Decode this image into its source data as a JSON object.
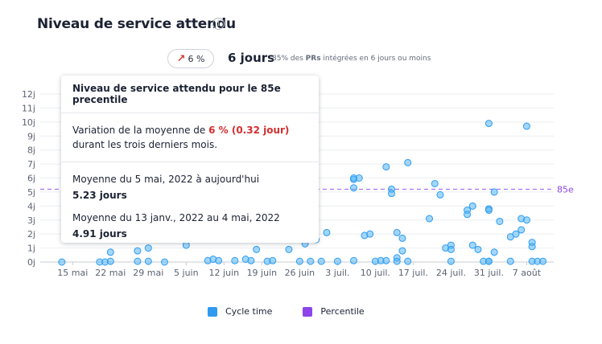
{
  "header": {
    "title": "Niveau de service attendu",
    "info_icon": "info-icon",
    "trend_arrow": "↗",
    "trend_value": "6 %",
    "days_value": "6 jours",
    "days_description_prefix": "85% des ",
    "days_description_bold": "PRs",
    "days_description_suffix": " intégrées en 6 jours ou moins"
  },
  "tooltip": {
    "title": "Niveau de service attendu pour le 85e precentile",
    "variation_prefix": "Variation de la moyenne de ",
    "variation_value": "6 % (0.32 jour)",
    "variation_suffix": " durant les trois derniers mois.",
    "period1_label": "Moyenne du 5 mai, 2022 à aujourd'hui",
    "period1_value": "5.23 jours",
    "period2_label": "Moyenne du 13 janv., 2022 au 4 mai, 2022",
    "period2_value": "4.91 jours"
  },
  "legend": {
    "cycle_time_label": "Cycle time",
    "cycle_time_color": "#2e9bf0",
    "percentile_label": "Percentile",
    "percentile_color": "#8b45e8"
  },
  "chart_data": {
    "type": "scatter",
    "percentile_label": "85e",
    "percentile_value": 5.2,
    "ylim": [
      0,
      12
    ],
    "yticks": [
      "0j",
      "1j",
      "2j",
      "3j",
      "4j",
      "5j",
      "6j",
      "7j",
      "8j",
      "9j",
      "10j",
      "11j",
      "12j"
    ],
    "xlim": [
      "2022-05-09",
      "2022-08-12"
    ],
    "xticks": [
      {
        "date": "2022-05-15",
        "label": "15 mai"
      },
      {
        "date": "2022-05-22",
        "label": "22 mai"
      },
      {
        "date": "2022-05-29",
        "label": "29 mai"
      },
      {
        "date": "2022-06-05",
        "label": "5 juin"
      },
      {
        "date": "2022-06-12",
        "label": "12 juin"
      },
      {
        "date": "2022-06-19",
        "label": "19 juin"
      },
      {
        "date": "2022-06-26",
        "label": "26 juin"
      },
      {
        "date": "2022-07-03",
        "label": "3 juil."
      },
      {
        "date": "2022-07-10",
        "label": "10 juil."
      },
      {
        "date": "2022-07-17",
        "label": "17 juil."
      },
      {
        "date": "2022-07-24",
        "label": "24 juil."
      },
      {
        "date": "2022-07-31",
        "label": "31 juil."
      },
      {
        "date": "2022-08-07",
        "label": "7 août"
      }
    ],
    "series": [
      {
        "name": "Cycle time",
        "color": "#2e9bf0",
        "points": [
          [
            "2022-05-13",
            0.0
          ],
          [
            "2022-05-20",
            0.0
          ],
          [
            "2022-05-21",
            0.0
          ],
          [
            "2022-05-22",
            0.7
          ],
          [
            "2022-05-22",
            0.05
          ],
          [
            "2022-05-27",
            0.05
          ],
          [
            "2022-05-27",
            0.8
          ],
          [
            "2022-05-29",
            1.0
          ],
          [
            "2022-05-29",
            0.05
          ],
          [
            "2022-06-01",
            0.0
          ],
          [
            "2022-06-05",
            1.2
          ],
          [
            "2022-06-09",
            0.1
          ],
          [
            "2022-06-10",
            0.2
          ],
          [
            "2022-06-11",
            0.1
          ],
          [
            "2022-06-14",
            0.1
          ],
          [
            "2022-06-16",
            0.2
          ],
          [
            "2022-06-17",
            0.1
          ],
          [
            "2022-06-18",
            0.9
          ],
          [
            "2022-06-20",
            0.05
          ],
          [
            "2022-06-21",
            0.1
          ],
          [
            "2022-06-24",
            0.9
          ],
          [
            "2022-06-26",
            0.05
          ],
          [
            "2022-06-27",
            1.3
          ],
          [
            "2022-06-28",
            0.05
          ],
          [
            "2022-06-29",
            1.6
          ],
          [
            "2022-06-30",
            0.05
          ],
          [
            "2022-07-01",
            2.1
          ],
          [
            "2022-07-03",
            0.05
          ],
          [
            "2022-07-06",
            0.1
          ],
          [
            "2022-07-06",
            5.9
          ],
          [
            "2022-07-06",
            5.3
          ],
          [
            "2022-07-06",
            6.0
          ],
          [
            "2022-07-07",
            6.0
          ],
          [
            "2022-07-08",
            1.9
          ],
          [
            "2022-07-09",
            2.0
          ],
          [
            "2022-07-10",
            0.05
          ],
          [
            "2022-07-11",
            0.1
          ],
          [
            "2022-07-12",
            0.1
          ],
          [
            "2022-07-12",
            6.8
          ],
          [
            "2022-07-13",
            5.2
          ],
          [
            "2022-07-13",
            4.9
          ],
          [
            "2022-07-14",
            2.1
          ],
          [
            "2022-07-14",
            0.3
          ],
          [
            "2022-07-14",
            0.05
          ],
          [
            "2022-07-15",
            0.8
          ],
          [
            "2022-07-15",
            1.7
          ],
          [
            "2022-07-16",
            0.05
          ],
          [
            "2022-07-16",
            7.1
          ],
          [
            "2022-07-20",
            3.1
          ],
          [
            "2022-07-21",
            5.6
          ],
          [
            "2022-07-22",
            4.8
          ],
          [
            "2022-07-23",
            1.0
          ],
          [
            "2022-07-24",
            1.2
          ],
          [
            "2022-07-24",
            0.9
          ],
          [
            "2022-07-24",
            0.05
          ],
          [
            "2022-07-27",
            3.7
          ],
          [
            "2022-07-27",
            3.4
          ],
          [
            "2022-07-28",
            4.0
          ],
          [
            "2022-07-28",
            1.2
          ],
          [
            "2022-07-29",
            0.9
          ],
          [
            "2022-07-30",
            0.05
          ],
          [
            "2022-07-31",
            3.8
          ],
          [
            "2022-07-31",
            3.7
          ],
          [
            "2022-07-31",
            9.9
          ],
          [
            "2022-07-31",
            0.05
          ],
          [
            "2022-07-31",
            0.05
          ],
          [
            "2022-08-01",
            0.7
          ],
          [
            "2022-08-01",
            5.0
          ],
          [
            "2022-08-02",
            2.9
          ],
          [
            "2022-08-04",
            1.8
          ],
          [
            "2022-08-04",
            0.05
          ],
          [
            "2022-08-05",
            2.0
          ],
          [
            "2022-08-06",
            2.3
          ],
          [
            "2022-08-06",
            3.1
          ],
          [
            "2022-08-07",
            9.7
          ],
          [
            "2022-08-07",
            3.0
          ],
          [
            "2022-08-08",
            1.4
          ],
          [
            "2022-08-08",
            1.1
          ],
          [
            "2022-08-08",
            0.05
          ],
          [
            "2022-08-09",
            0.05
          ],
          [
            "2022-08-10",
            0.05
          ]
        ]
      }
    ]
  }
}
